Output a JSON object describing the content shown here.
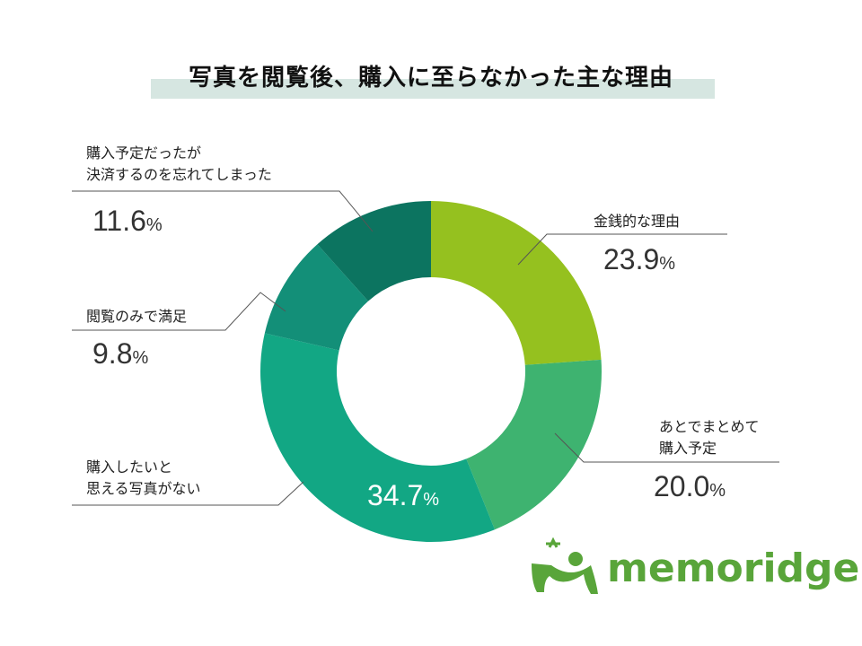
{
  "title": "写真を閲覧後、購入に至らなかった主な理由",
  "colors": {
    "title_band": "#d6e6e1",
    "slice_1": "#95c11f",
    "slice_2": "#3eb370",
    "slice_3": "#12a784",
    "slice_4": "#138f78",
    "slice_5": "#0c7460",
    "logo": "#59a53a"
  },
  "chart_data": {
    "type": "pie",
    "variant": "donut",
    "unit": "%",
    "slices": [
      {
        "label": "金銭的な理由",
        "value": 23.9
      },
      {
        "label": "あとでまとめて購入予定",
        "value": 20.0
      },
      {
        "label": "購入したいと思える写真がない",
        "value": 34.7
      },
      {
        "label": "閲覧のみで満足",
        "value": 9.8
      },
      {
        "label": "購入予定だったが決済するのを忘れてしまった",
        "value": 11.6
      }
    ]
  },
  "labels": {
    "s1_line1": "金銭的な理由",
    "s2_line1": "あとでまとめて",
    "s2_line2": "購入予定",
    "s3_line1": "購入したいと",
    "s3_line2": "思える写真がない",
    "s4_line1": "閲覧のみで満足",
    "s5_line1": "購入予定だったが",
    "s5_line2": "決済するのを忘れてしまった"
  },
  "values": {
    "s1": "23.9",
    "s2": "20.0",
    "s3": "34.7",
    "s4": "9.8",
    "s5": "11.6",
    "unit": "%"
  },
  "logo": {
    "text": "memoridge"
  }
}
